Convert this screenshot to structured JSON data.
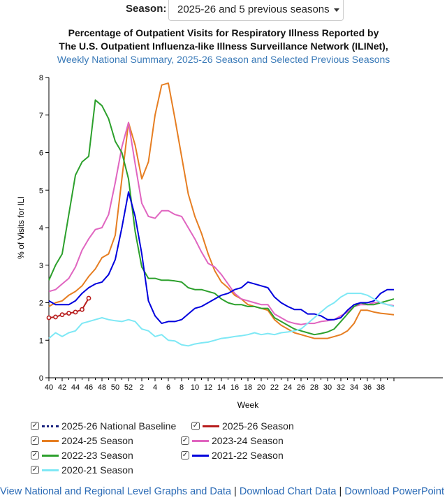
{
  "season_selector": {
    "label": "Season:",
    "value": "2025-26 and 5 previous seasons"
  },
  "titles": {
    "line1": "Percentage of Outpatient Visits for Respiratory Illness Reported by",
    "line2": "The U.S. Outpatient Influenza-like Illness Surveillance Network (ILINet),",
    "line3": "Weekly National Summary, 2025-26 Season and Selected Previous Seasons"
  },
  "legend": [
    {
      "id": "baseline",
      "label": "2025-26 National Baseline",
      "color": "#1a237e",
      "style": "dotted",
      "checked": "✓"
    },
    {
      "id": "s2526",
      "label": "2025-26 Season",
      "color": "#b71c1c",
      "style": "solid",
      "checked": "✓"
    },
    {
      "id": "s2425",
      "label": "2024-25 Season",
      "color": "#e67e22",
      "style": "solid",
      "checked": "✓"
    },
    {
      "id": "s2324",
      "label": "2023-24 Season",
      "color": "#e065c0",
      "style": "solid",
      "checked": "✓"
    },
    {
      "id": "s2223",
      "label": "2022-23 Season",
      "color": "#2ca02c",
      "style": "solid",
      "checked": "✓"
    },
    {
      "id": "s2122",
      "label": "2021-22 Season",
      "color": "#0000dd",
      "style": "solid",
      "checked": "✓"
    },
    {
      "id": "s2021",
      "label": "2020-21 Season",
      "color": "#7ee8f5",
      "style": "solid",
      "checked": "✓"
    }
  ],
  "links": [
    "View National and Regional Level Graphs and Data",
    "Download Chart Data",
    "Download PowerPoint"
  ],
  "chart_data": {
    "type": "line",
    "title": "Percentage of Outpatient Visits for Respiratory Illness Reported by The U.S. Outpatient Influenza-like Illness Surveillance Network (ILINet), Weekly National Summary, 2025-26 Season and Selected Previous Seasons",
    "xlabel": "Week",
    "ylabel": "% of Visits for ILI",
    "ylim": [
      0,
      8
    ],
    "yticks": [
      "0",
      "1",
      "2",
      "3",
      "4",
      "5",
      "6",
      "7",
      "8"
    ],
    "xticks": [
      "40",
      "42",
      "44",
      "46",
      "48",
      "50",
      "52",
      "2",
      "4",
      "6",
      "8",
      "10",
      "12",
      "14",
      "16",
      "18",
      "20",
      "22",
      "24",
      "26",
      "28",
      "30",
      "32",
      "34",
      "36",
      "38"
    ],
    "x_note": "x positions are week indices 0..52 starting at week 40; tick labels shown every 2 weeks",
    "series": [
      {
        "id": "s2425",
        "name": "2024-25 Season",
        "color": "#e67e22",
        "markers": false,
        "values": [
          1.9,
          2.0,
          2.05,
          2.2,
          2.3,
          2.45,
          2.7,
          2.9,
          3.2,
          3.3,
          3.8,
          5.3,
          6.8,
          6.2,
          5.3,
          5.75,
          7.0,
          7.8,
          7.85,
          6.9,
          5.9,
          4.9,
          4.3,
          3.85,
          3.3,
          2.85,
          2.55,
          2.4,
          2.2,
          2.1,
          1.95,
          1.9,
          1.85,
          1.8,
          1.55,
          1.4,
          1.3,
          1.2,
          1.15,
          1.1,
          1.05,
          1.05,
          1.05,
          1.1,
          1.15,
          1.25,
          1.45,
          1.8,
          1.8,
          1.75,
          1.72,
          1.7,
          1.68
        ]
      },
      {
        "id": "s2324",
        "name": "2023-24 Season",
        "color": "#e065c0",
        "markers": false,
        "values": [
          2.3,
          2.35,
          2.5,
          2.65,
          2.95,
          3.4,
          3.7,
          3.95,
          4.0,
          4.35,
          5.2,
          6.15,
          6.8,
          5.7,
          4.65,
          4.3,
          4.25,
          4.45,
          4.45,
          4.35,
          4.3,
          4.0,
          3.7,
          3.35,
          3.05,
          2.95,
          2.75,
          2.5,
          2.25,
          2.1,
          2.05,
          2.0,
          1.95,
          1.95,
          1.7,
          1.6,
          1.5,
          1.45,
          1.42,
          1.45,
          1.45,
          1.5,
          1.52,
          1.55,
          1.65,
          1.75,
          1.9,
          1.95,
          1.95,
          2.0,
          2.0,
          1.95,
          1.92
        ]
      },
      {
        "id": "s2223",
        "name": "2022-23 Season",
        "color": "#2ca02c",
        "markers": false,
        "values": [
          2.6,
          3.0,
          3.3,
          4.35,
          5.4,
          5.75,
          5.9,
          7.4,
          7.25,
          6.9,
          6.3,
          6.0,
          5.3,
          3.9,
          2.95,
          2.65,
          2.65,
          2.6,
          2.6,
          2.58,
          2.55,
          2.4,
          2.35,
          2.35,
          2.3,
          2.25,
          2.1,
          2.0,
          1.95,
          1.95,
          1.9,
          1.9,
          1.85,
          1.85,
          1.6,
          1.5,
          1.4,
          1.3,
          1.25,
          1.2,
          1.15,
          1.18,
          1.22,
          1.3,
          1.5,
          1.7,
          1.9,
          2.0,
          1.95,
          1.95,
          2.0,
          2.05,
          2.1
        ]
      },
      {
        "id": "s2122",
        "name": "2021-22 Season",
        "color": "#0000dd",
        "markers": false,
        "values": [
          2.05,
          1.95,
          1.95,
          1.95,
          2.05,
          2.25,
          2.4,
          2.5,
          2.55,
          2.75,
          3.15,
          4.0,
          4.95,
          4.3,
          3.3,
          2.05,
          1.65,
          1.45,
          1.5,
          1.5,
          1.55,
          1.7,
          1.85,
          1.9,
          2.0,
          2.1,
          2.2,
          2.25,
          2.35,
          2.4,
          2.55,
          2.5,
          2.45,
          2.4,
          2.15,
          2.0,
          1.9,
          1.82,
          1.82,
          1.7,
          1.7,
          1.65,
          1.55,
          1.55,
          1.6,
          1.8,
          1.95,
          2.0,
          2.0,
          2.05,
          2.25,
          2.35,
          2.35
        ]
      },
      {
        "id": "s2021",
        "name": "2020-21 Season",
        "color": "#7ee8f5",
        "markers": false,
        "values": [
          1.05,
          1.2,
          1.1,
          1.2,
          1.25,
          1.45,
          1.5,
          1.55,
          1.6,
          1.55,
          1.52,
          1.5,
          1.55,
          1.5,
          1.3,
          1.25,
          1.1,
          1.15,
          1.0,
          0.98,
          0.88,
          0.85,
          0.9,
          0.93,
          0.95,
          1.0,
          1.05,
          1.07,
          1.1,
          1.12,
          1.15,
          1.2,
          1.15,
          1.18,
          1.15,
          1.2,
          1.22,
          1.25,
          1.3,
          1.45,
          1.6,
          1.75,
          1.9,
          2.0,
          2.15,
          2.25,
          2.25,
          2.25,
          2.2,
          2.1,
          2.0,
          1.95,
          1.9
        ]
      },
      {
        "id": "s2526",
        "name": "2025-26 Season",
        "color": "#b71c1c",
        "markers": true,
        "values": [
          1.6,
          1.62,
          1.68,
          1.72,
          1.75,
          1.82,
          2.12
        ]
      }
    ]
  }
}
